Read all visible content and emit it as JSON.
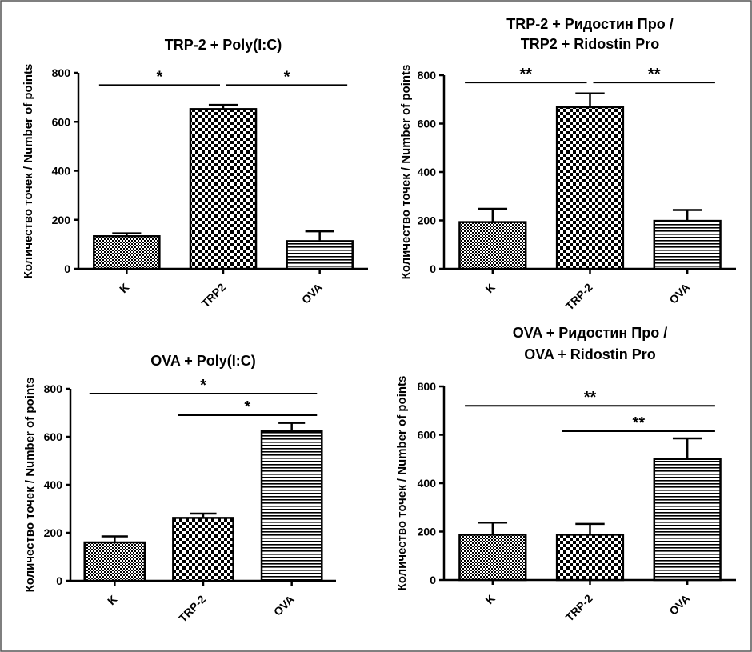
{
  "chart_data": [
    {
      "type": "bar",
      "title_lines": [
        "TRP-2 + Poly(I:C)"
      ],
      "ylabel": "Количество точек / Number of points",
      "xlabel": "",
      "categories": [
        "K",
        "TRP2",
        "OVA"
      ],
      "values": [
        133,
        652,
        113
      ],
      "errors": [
        12,
        17,
        40
      ],
      "patterns": [
        "check-small",
        "check",
        "hlines"
      ],
      "ylim": [
        0,
        800
      ],
      "yticks": [
        0,
        200,
        400,
        600,
        800
      ],
      "significance": [
        {
          "from": 0,
          "to": 1,
          "label": "*",
          "level": 750
        },
        {
          "from": 1,
          "to": 2,
          "label": "*",
          "level": 750
        }
      ]
    },
    {
      "type": "bar",
      "title_lines": [
        "TRP-2 + Ридостин Про /",
        "TRP2 + Ridostin Pro"
      ],
      "ylabel": "Количество точек / Number of points",
      "xlabel": "",
      "categories": [
        "K",
        "TRP-2",
        "OVA"
      ],
      "values": [
        193,
        668,
        198
      ],
      "errors": [
        55,
        57,
        45
      ],
      "patterns": [
        "check-small",
        "check",
        "hlines"
      ],
      "ylim": [
        0,
        800
      ],
      "yticks": [
        0,
        200,
        400,
        600,
        800
      ],
      "significance": [
        {
          "from": 0,
          "to": 1,
          "label": "**",
          "level": 770
        },
        {
          "from": 1,
          "to": 2,
          "label": "**",
          "level": 770
        }
      ]
    },
    {
      "type": "bar",
      "title_lines": [
        "OVA + Poly(I:C)"
      ],
      "ylabel": "Количество точек / Number of points",
      "xlabel": "",
      "categories": [
        "K",
        "TRP-2",
        "OVA"
      ],
      "values": [
        160,
        262,
        623
      ],
      "errors": [
        25,
        18,
        35
      ],
      "patterns": [
        "check-small",
        "check",
        "hlines"
      ],
      "ylim": [
        0,
        800
      ],
      "yticks": [
        0,
        200,
        400,
        600,
        800
      ],
      "significance": [
        {
          "from": 0,
          "to": 2,
          "label": "*",
          "level": 780
        },
        {
          "from": 1,
          "to": 2,
          "label": "*",
          "level": 690
        }
      ]
    },
    {
      "type": "bar",
      "title_lines": [
        "OVA + Ридостин Про /",
        "OVA + Ridostin Pro"
      ],
      "ylabel": "Количество точек / Number of points",
      "xlabel": "",
      "categories": [
        "K",
        "TRP-2",
        "OVA"
      ],
      "values": [
        187,
        187,
        500
      ],
      "errors": [
        50,
        45,
        85
      ],
      "patterns": [
        "check-small",
        "check",
        "hlines"
      ],
      "ylim": [
        0,
        800
      ],
      "yticks": [
        0,
        200,
        400,
        600,
        800
      ],
      "significance": [
        {
          "from": 0,
          "to": 2,
          "label": "**",
          "level": 720
        },
        {
          "from": 1,
          "to": 2,
          "label": "**",
          "level": 615
        }
      ]
    }
  ]
}
